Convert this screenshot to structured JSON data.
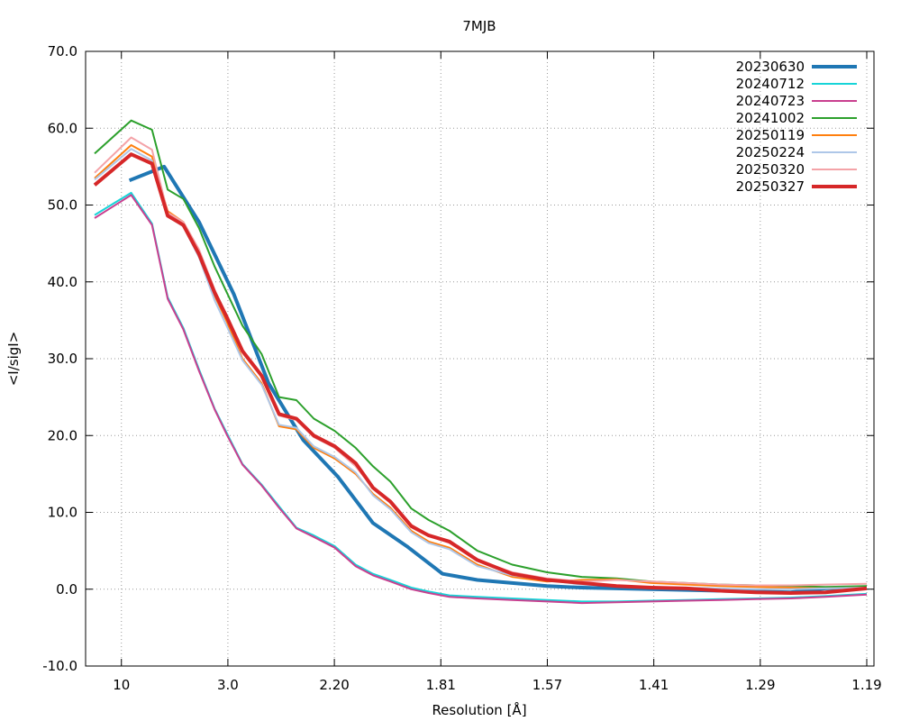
{
  "chart_data": {
    "type": "line",
    "title": "7MJB",
    "xlabel": "Resolution [Å]",
    "ylabel": "<I/sigI>",
    "ylim": [
      -10,
      70
    ],
    "y_ticks": [
      "-10.0",
      "0.0",
      "10.0",
      "20.0",
      "30.0",
      "40.0",
      "50.0",
      "60.0",
      "70.0"
    ],
    "x_ticks": [
      "10",
      "3.0",
      "2.20",
      "1.81",
      "1.57",
      "1.41",
      "1.29",
      "1.19"
    ],
    "x_tick_positions": [
      0.0077,
      0.0383,
      0.0689,
      0.0995,
      0.1301,
      0.1607,
      0.1913,
      0.2219
    ],
    "xlim_inverse_sq_res": [
      0.0,
      0.2219
    ],
    "grid": true,
    "legend_position": "top-right",
    "series": [
      {
        "name": "20230630",
        "color": "#1f77b4",
        "width": 4,
        "x": [
          0.01,
          0.02,
          0.03,
          0.04,
          0.05,
          0.06,
          0.07,
          0.08,
          0.09,
          0.1,
          0.11,
          0.12,
          0.13,
          0.14,
          0.15,
          0.16,
          0.17,
          0.18,
          0.19,
          0.2,
          0.21,
          0.2219
        ],
        "y": [
          53.2,
          55.0,
          47.8,
          38.4,
          26.8,
          19.4,
          14.6,
          8.6,
          5.5,
          2.0,
          1.2,
          0.8,
          0.4,
          0.2,
          0.1,
          0.0,
          -0.1,
          -0.2,
          -0.3,
          -0.4,
          0.1,
          0.2
        ]
      },
      {
        "name": "20240712",
        "color": "#17d4d8",
        "width": 2,
        "x": [
          0.0,
          0.0105,
          0.0165,
          0.021,
          0.0255,
          0.03,
          0.0345,
          0.038,
          0.0425,
          0.048,
          0.053,
          0.058,
          0.063,
          0.069,
          0.075,
          0.08,
          0.085,
          0.091,
          0.096,
          0.102,
          0.11,
          0.12,
          0.13,
          0.14,
          0.15,
          0.16,
          0.17,
          0.18,
          0.19,
          0.2,
          0.21,
          0.2219
        ],
        "y": [
          48.7,
          51.6,
          47.6,
          38.0,
          34.0,
          28.6,
          23.5,
          20.3,
          16.3,
          13.6,
          10.8,
          8.0,
          7.0,
          5.6,
          3.2,
          2.0,
          1.2,
          0.2,
          -0.3,
          -0.8,
          -1.0,
          -1.2,
          -1.4,
          -1.6,
          -1.6,
          -1.5,
          -1.4,
          -1.3,
          -1.2,
          -1.1,
          -0.9,
          -0.6
        ]
      },
      {
        "name": "20240723",
        "color": "#c93f8f",
        "width": 2,
        "x": [
          0.0,
          0.0105,
          0.0165,
          0.021,
          0.0255,
          0.03,
          0.0345,
          0.038,
          0.0425,
          0.048,
          0.053,
          0.058,
          0.063,
          0.069,
          0.075,
          0.08,
          0.085,
          0.091,
          0.096,
          0.102,
          0.11,
          0.12,
          0.13,
          0.14,
          0.15,
          0.16,
          0.17,
          0.18,
          0.19,
          0.2,
          0.21,
          0.2219
        ],
        "y": [
          48.3,
          51.3,
          47.4,
          37.8,
          33.8,
          28.4,
          23.4,
          20.1,
          16.2,
          13.5,
          10.6,
          7.9,
          6.8,
          5.4,
          3.0,
          1.8,
          1.0,
          0.0,
          -0.5,
          -1.0,
          -1.2,
          -1.4,
          -1.6,
          -1.8,
          -1.7,
          -1.6,
          -1.5,
          -1.4,
          -1.3,
          -1.2,
          -1.0,
          -0.7
        ]
      },
      {
        "name": "20241002",
        "color": "#2ca02c",
        "width": 2,
        "x": [
          0.0,
          0.0105,
          0.0165,
          0.021,
          0.0255,
          0.03,
          0.0345,
          0.038,
          0.0425,
          0.048,
          0.053,
          0.058,
          0.063,
          0.069,
          0.075,
          0.08,
          0.085,
          0.091,
          0.096,
          0.102,
          0.11,
          0.12,
          0.13,
          0.14,
          0.15,
          0.16,
          0.17,
          0.18,
          0.19,
          0.2,
          0.21,
          0.2219
        ],
        "y": [
          56.7,
          61.0,
          59.8,
          52.0,
          50.8,
          47.0,
          42.0,
          38.6,
          34.3,
          30.6,
          25.0,
          24.6,
          22.2,
          20.6,
          18.4,
          16.0,
          14.0,
          10.5,
          9.0,
          7.6,
          5.0,
          3.2,
          2.2,
          1.6,
          1.4,
          1.0,
          0.8,
          0.6,
          0.5,
          0.4,
          0.3,
          0.4
        ]
      },
      {
        "name": "20250119",
        "color": "#ff7f0e",
        "width": 2,
        "x": [
          0.0,
          0.0105,
          0.0165,
          0.021,
          0.0255,
          0.03,
          0.0345,
          0.038,
          0.0425,
          0.048,
          0.053,
          0.058,
          0.063,
          0.069,
          0.075,
          0.08,
          0.085,
          0.091,
          0.096,
          0.102,
          0.11,
          0.12,
          0.13,
          0.14,
          0.15,
          0.16,
          0.17,
          0.18,
          0.19,
          0.2,
          0.21,
          0.2219
        ],
        "y": [
          53.5,
          57.8,
          56.3,
          49.2,
          47.8,
          43.8,
          38.2,
          34.8,
          30.0,
          26.8,
          21.2,
          20.8,
          18.4,
          17.0,
          15.0,
          12.4,
          10.6,
          7.6,
          6.2,
          5.4,
          3.2,
          1.6,
          1.0,
          1.2,
          1.3,
          0.8,
          0.6,
          0.4,
          0.3,
          0.2,
          0.1,
          0.2
        ]
      },
      {
        "name": "20250224",
        "color": "#aec7e8",
        "width": 2,
        "x": [
          0.0,
          0.0105,
          0.0165,
          0.021,
          0.0255,
          0.03,
          0.0345,
          0.038,
          0.0425,
          0.048,
          0.053,
          0.058,
          0.063,
          0.069,
          0.075,
          0.08,
          0.085,
          0.091,
          0.096,
          0.102,
          0.11,
          0.12,
          0.13,
          0.14,
          0.15,
          0.16,
          0.17,
          0.18,
          0.19,
          0.2,
          0.21,
          0.2219
        ],
        "y": [
          53.3,
          57.3,
          55.8,
          48.6,
          47.2,
          43.2,
          37.6,
          34.2,
          29.8,
          26.6,
          21.4,
          21.0,
          18.6,
          17.2,
          15.2,
          12.2,
          10.4,
          7.4,
          6.0,
          5.2,
          3.0,
          1.8,
          1.2,
          0.6,
          0.4,
          0.3,
          0.2,
          0.1,
          0.0,
          0.0,
          0.1,
          0.2
        ]
      },
      {
        "name": "20250320",
        "color": "#f4a3a8",
        "width": 2,
        "x": [
          0.0,
          0.0105,
          0.0165,
          0.021,
          0.0255,
          0.03,
          0.0345,
          0.038,
          0.0425,
          0.048,
          0.053,
          0.058,
          0.063,
          0.069,
          0.075,
          0.08,
          0.085,
          0.091,
          0.096,
          0.102,
          0.11,
          0.12,
          0.13,
          0.14,
          0.15,
          0.16,
          0.17,
          0.18,
          0.19,
          0.2,
          0.21,
          0.2219
        ],
        "y": [
          54.2,
          58.8,
          57.2,
          49.0,
          47.8,
          44.2,
          39.0,
          35.5,
          30.8,
          27.6,
          22.6,
          22.0,
          19.8,
          18.4,
          16.0,
          13.2,
          11.4,
          8.4,
          7.0,
          6.0,
          3.8,
          2.2,
          1.4,
          1.0,
          1.2,
          1.0,
          0.8,
          0.6,
          0.5,
          0.5,
          0.6,
          0.7
        ]
      },
      {
        "name": "20250327",
        "color": "#d62728",
        "width": 4,
        "x": [
          0.0,
          0.0105,
          0.0165,
          0.021,
          0.0255,
          0.03,
          0.0345,
          0.038,
          0.0425,
          0.048,
          0.053,
          0.058,
          0.063,
          0.069,
          0.075,
          0.08,
          0.085,
          0.091,
          0.096,
          0.102,
          0.11,
          0.12,
          0.13,
          0.14,
          0.15,
          0.16,
          0.17,
          0.18,
          0.19,
          0.2,
          0.21,
          0.2219
        ],
        "y": [
          52.6,
          56.6,
          55.4,
          48.6,
          47.4,
          43.6,
          38.6,
          35.4,
          31.0,
          27.8,
          22.8,
          22.2,
          20.0,
          18.6,
          16.4,
          13.2,
          11.4,
          8.2,
          7.0,
          6.2,
          3.8,
          2.0,
          1.2,
          0.8,
          0.4,
          0.2,
          0.1,
          -0.2,
          -0.4,
          -0.5,
          -0.4,
          0.1
        ]
      }
    ]
  }
}
